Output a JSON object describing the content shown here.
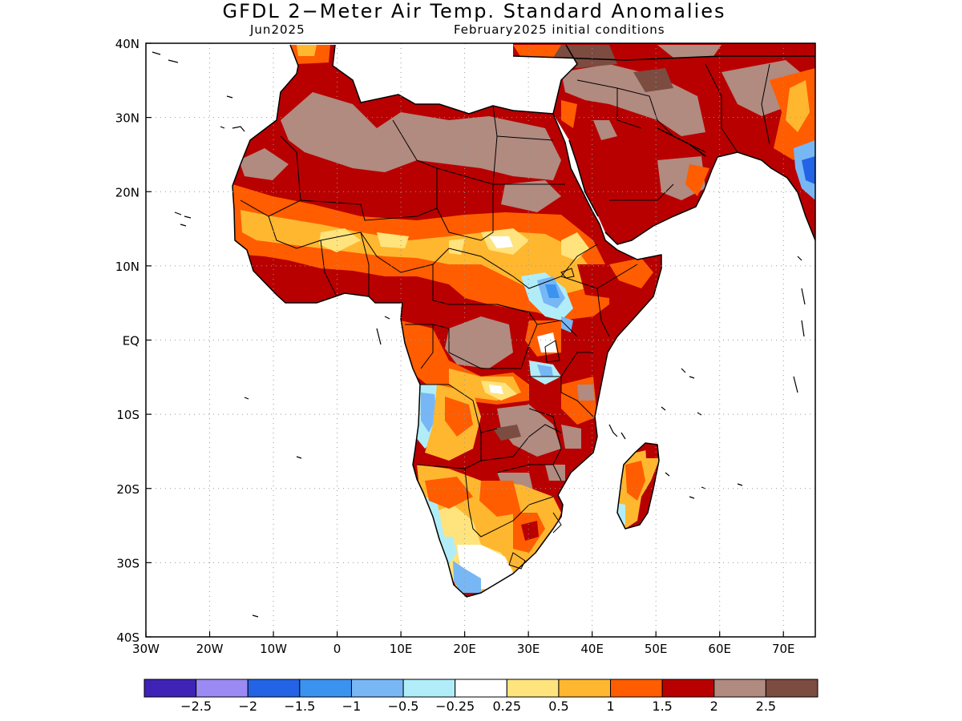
{
  "header": {
    "title": "GFDL 2−Meter Air Temp. Standard Anomalies",
    "valid_month": "Jun2025",
    "init": "February2025 initial conditions"
  },
  "map": {
    "lon_range": [
      -30,
      75
    ],
    "lat_range": [
      -40,
      40
    ],
    "x_ticks": [
      {
        "lon": -30,
        "label": "30W"
      },
      {
        "lon": -20,
        "label": "20W"
      },
      {
        "lon": -10,
        "label": "10W"
      },
      {
        "lon": 0,
        "label": "0"
      },
      {
        "lon": 10,
        "label": "10E"
      },
      {
        "lon": 20,
        "label": "20E"
      },
      {
        "lon": 30,
        "label": "30E"
      },
      {
        "lon": 40,
        "label": "40E"
      },
      {
        "lon": 50,
        "label": "50E"
      },
      {
        "lon": 60,
        "label": "60E"
      },
      {
        "lon": 70,
        "label": "70E"
      }
    ],
    "y_ticks": [
      {
        "lat": 40,
        "label": "40N"
      },
      {
        "lat": 30,
        "label": "30N"
      },
      {
        "lat": 20,
        "label": "20N"
      },
      {
        "lat": 10,
        "label": "10N"
      },
      {
        "lat": 0,
        "label": "EQ"
      },
      {
        "lat": -10,
        "label": "10S"
      },
      {
        "lat": -20,
        "label": "20S"
      },
      {
        "lat": -30,
        "label": "30S"
      },
      {
        "lat": -40,
        "label": "40S"
      }
    ],
    "grid": "dotted",
    "colors": {
      "ocean": "#ffffff",
      "anom_lt_m2_5": "#3f23b6",
      "anom_m2_5_m2": "#9b8af3",
      "anom_m2_m1_5": "#2364e6",
      "anom_m1_5_m1": "#3b93f0",
      "anom_m1_m0_5": "#78b7f5",
      "anom_m0_5_m0_25": "#b1edf8",
      "anom_m0_25_0_25": "#ffffff",
      "anom_0_25_0_5": "#ffe37c",
      "anom_0_5_1": "#ffb72f",
      "anom_1_1_5": "#ff5d00",
      "anom_1_5_2": "#b80000",
      "anom_2_2_5": "#b18a80",
      "anom_gt_2_5": "#7c4c41"
    }
  },
  "colorbar": {
    "colors": [
      "#3f23b6",
      "#9b8af3",
      "#2364e6",
      "#3b93f0",
      "#78b7f5",
      "#b1edf8",
      "#ffffff",
      "#ffe37c",
      "#ffb72f",
      "#ff5d00",
      "#b80000",
      "#b18a80",
      "#7c4c41"
    ],
    "labels": [
      "−2.5",
      "−2",
      "−1.5",
      "−1",
      "−0.5",
      "−0.25",
      "0.25",
      "0.5",
      "1",
      "1.5",
      "2",
      "2.5"
    ]
  }
}
